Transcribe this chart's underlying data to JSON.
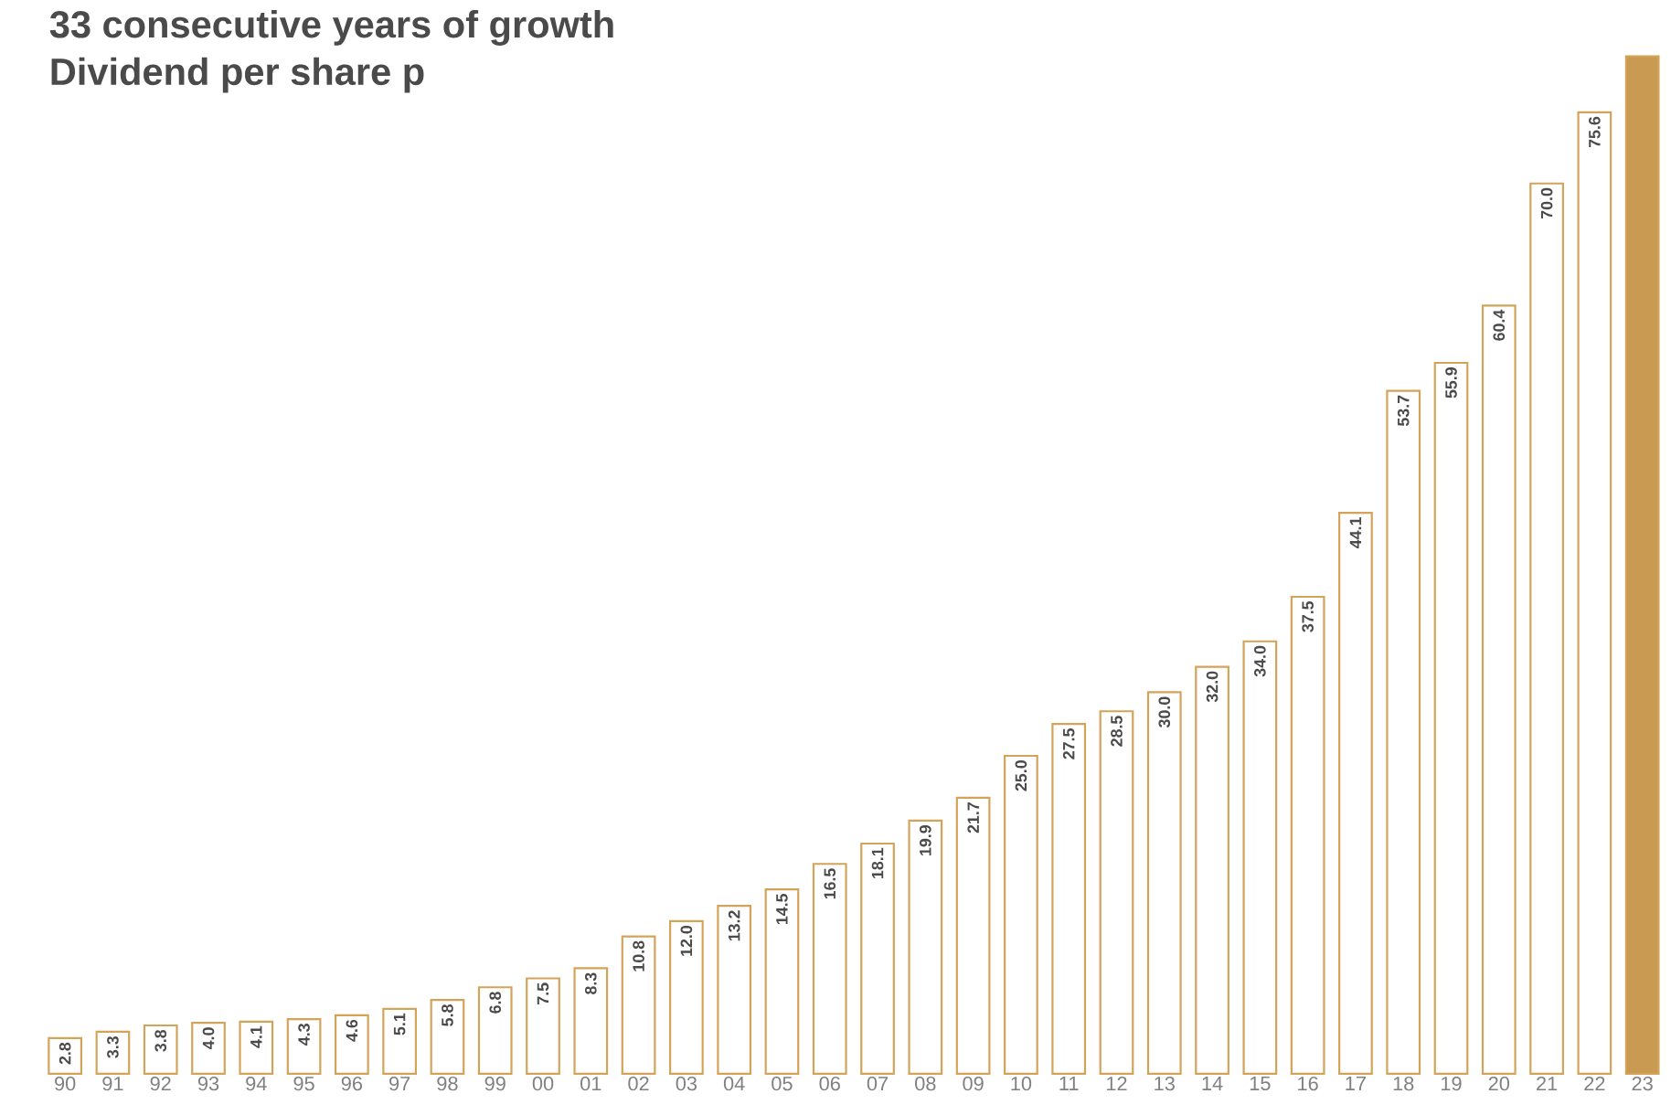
{
  "chart_data": {
    "type": "bar",
    "title": "33 consecutive years of growth",
    "subtitle": "Dividend per share p",
    "categories": [
      "90",
      "91",
      "92",
      "93",
      "94",
      "95",
      "96",
      "97",
      "98",
      "99",
      "00",
      "01",
      "02",
      "03",
      "04",
      "05",
      "06",
      "07",
      "08",
      "09",
      "10",
      "11",
      "12",
      "13",
      "14",
      "15",
      "16",
      "17",
      "18",
      "19",
      "20",
      "21",
      "22",
      "23"
    ],
    "series": [
      {
        "color": "#d4a35a",
        "values": [
          2.8,
          3.3,
          3.8,
          4.0,
          4.1,
          4.3,
          4.6,
          5.1,
          5.8,
          6.8,
          7.5,
          8.3,
          10.8,
          12.0,
          13.2,
          14.5,
          16.5,
          18.1,
          19.9,
          21.7,
          25.0,
          27.5,
          28.5,
          30.0,
          32.0,
          34.0,
          37.5,
          44.1,
          53.7,
          55.9,
          60.4,
          70.0,
          75.6,
          80.0
        ],
        "colors": [
          "#ffffff",
          "#ffffff",
          "#ffffff",
          "#ffffff",
          "#ffffff",
          "#ffffff",
          "#ffffff",
          "#ffffff",
          "#ffffff",
          "#ffffff",
          "#ffffff",
          "#ffffff",
          "#ffffff",
          "#ffffff",
          "#ffffff",
          "#ffffff",
          "#ffffff",
          "#ffffff",
          "#ffffff",
          "#ffffff",
          "#ffffff",
          "#ffffff",
          "#ffffff",
          "#ffffff",
          "#ffffff",
          "#ffffff",
          "#ffffff",
          "#ffffff",
          "#ffffff",
          "#ffffff",
          "#ffffff",
          "#ffffff",
          "#ffffff",
          "#c99a52"
        ],
        "value_labels": [
          "2.8",
          "3.3",
          "3.8",
          "4.0",
          "4.1",
          "4.3",
          "4.6",
          "5.1",
          "5.8",
          "6.8",
          "7.5",
          "8.3",
          "10.8",
          "12.0",
          "13.2",
          "14.5",
          "16.5",
          "18.1",
          "19.9",
          "21.7",
          "25.0",
          "27.5",
          "28.5",
          "30.0",
          "32.0",
          "34.0",
          "37.5",
          "44.1",
          "53.7",
          "55.9",
          "60.4",
          "70.0",
          "75.6",
          null
        ]
      }
    ],
    "ylim": [
      0,
      80
    ]
  }
}
